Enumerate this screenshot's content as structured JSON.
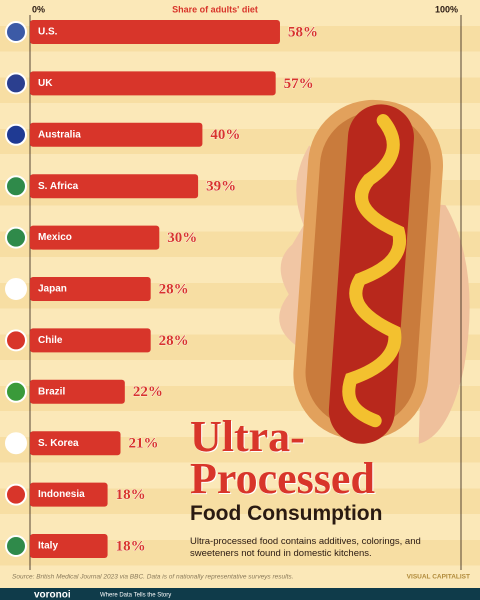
{
  "chart_data": {
    "type": "bar",
    "orientation": "horizontal",
    "title": "Ultra-Processed",
    "subtitle": "Food Consumption",
    "description": "Ultra-processed food contains additives, colorings, and sweeteners not found in domestic kitchens.",
    "axis_label": "Share of adults' diet",
    "categories": [
      "U.S.",
      "UK",
      "Australia",
      "S. Africa",
      "Mexico",
      "Japan",
      "Chile",
      "Brazil",
      "S. Korea",
      "Indonesia",
      "Italy"
    ],
    "values": [
      58,
      57,
      40,
      39,
      30,
      28,
      28,
      22,
      21,
      18,
      18
    ],
    "value_labels": [
      "58%",
      "57%",
      "40%",
      "39%",
      "30%",
      "28%",
      "28%",
      "22%",
      "21%",
      "18%",
      "18%"
    ],
    "color": "#d8352a",
    "xlim": [
      0,
      100
    ],
    "xticks": [
      {
        "value": 0,
        "label": "0%"
      },
      {
        "value": 100,
        "label": "100%"
      }
    ],
    "source": "Source: British Medical Journal 2023 via BBC. Data is of nationally representative surveys results.",
    "brand": "VISUAL CAPITALIST",
    "footer": "voronoi",
    "footer_tagline": "Where Data Tells the Story"
  }
}
